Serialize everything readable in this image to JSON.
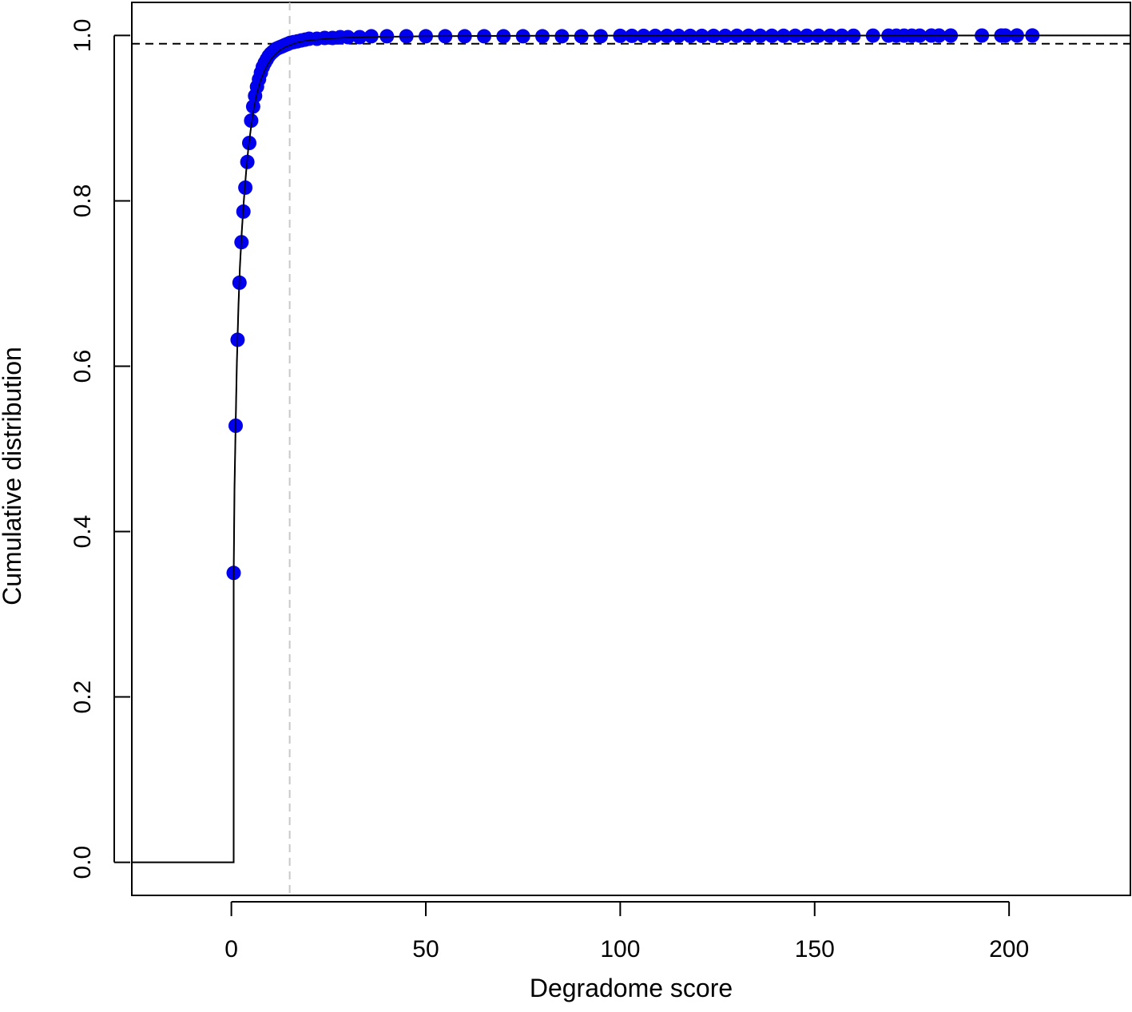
{
  "chart_data": {
    "type": "scatter",
    "title": "",
    "xlabel": "Degradome score",
    "ylabel": "Cumulative distribution",
    "xlim": [
      -25.6,
      231.2
    ],
    "ylim": [
      -0.04,
      1.04
    ],
    "x_ticks": [
      0,
      50,
      100,
      150,
      200
    ],
    "x_tick_labels": [
      "0",
      "50",
      "100",
      "150",
      "200"
    ],
    "y_ticks": [
      0.0,
      0.2,
      0.4,
      0.6,
      0.8,
      1.0
    ],
    "y_tick_labels": [
      "0.0",
      "0.2",
      "0.4",
      "0.6",
      "0.8",
      "1.0"
    ],
    "grid": false,
    "legend": "none",
    "point_color": "#0000ee",
    "series": [
      {
        "kind": "empirical_cdf_points",
        "x": [
          0.6,
          1.1,
          1.6,
          2.1,
          2.6,
          3.1,
          3.6,
          4.1,
          4.6,
          5.1,
          5.6,
          6.1,
          6.6,
          7.1,
          7.6,
          8.1,
          8.6,
          9.1,
          9.6,
          10.1,
          10.6,
          11.1,
          11.6,
          12.1,
          12.6,
          13.1,
          13.6,
          14.1,
          14.6,
          15.1,
          16,
          17,
          18,
          19,
          20,
          22,
          24,
          26,
          28,
          30,
          33,
          36,
          40,
          45,
          50,
          55,
          60,
          65,
          70,
          75,
          80,
          85,
          90,
          95,
          100,
          103,
          106,
          109,
          112,
          115,
          118,
          121,
          124,
          127,
          130,
          133,
          136,
          139,
          142,
          145,
          148,
          151,
          154,
          157,
          160,
          165,
          169,
          171,
          173,
          175,
          177,
          180,
          182,
          185,
          193,
          198,
          199,
          202,
          206
        ],
        "y": [
          0.35,
          0.528,
          0.632,
          0.701,
          0.75,
          0.787,
          0.816,
          0.847,
          0.87,
          0.897,
          0.914,
          0.927,
          0.938,
          0.947,
          0.955,
          0.962,
          0.967,
          0.971,
          0.975,
          0.978,
          0.98,
          0.982,
          0.984,
          0.985,
          0.986,
          0.987,
          0.988,
          0.989,
          0.99,
          0.991,
          0.992,
          0.993,
          0.994,
          0.995,
          0.996,
          0.996,
          0.997,
          0.997,
          0.998,
          0.998,
          0.998,
          0.999,
          0.999,
          0.999,
          0.999,
          0.999,
          0.999,
          0.999,
          0.999,
          0.999,
          0.999,
          0.999,
          0.999,
          0.999,
          0.9995,
          0.9995,
          0.9995,
          0.9995,
          0.9995,
          0.9995,
          0.9995,
          0.9995,
          0.9995,
          0.9995,
          0.9996,
          0.9996,
          0.9996,
          0.9996,
          0.9996,
          0.9996,
          0.9997,
          0.9997,
          0.9997,
          0.9997,
          0.9997,
          0.9998,
          0.9998,
          0.9998,
          0.9998,
          0.9998,
          0.9998,
          0.9999,
          0.9999,
          0.9999,
          0.9999,
          0.9999,
          0.9999,
          1.0,
          1.0
        ]
      },
      {
        "kind": "fitted_cdf_line",
        "x": [
          -25.6,
          0.6,
          0.6,
          0.8,
          1.1,
          1.4,
          1.8,
          2.2,
          2.7,
          3.2,
          3.8,
          4.4,
          5.1,
          5.8,
          6.6,
          7.5,
          8.5,
          9.5,
          10.5,
          11.5,
          12.5,
          13.5,
          14.5,
          15.5,
          17,
          19,
          22,
          26,
          30,
          40,
          50,
          60,
          80,
          100,
          150,
          200,
          231.2
        ],
        "y": [
          0,
          0,
          0.345,
          0.45,
          0.53,
          0.6,
          0.67,
          0.72,
          0.765,
          0.8,
          0.835,
          0.865,
          0.89,
          0.912,
          0.93,
          0.945,
          0.957,
          0.966,
          0.973,
          0.978,
          0.982,
          0.985,
          0.987,
          0.989,
          0.9915,
          0.9935,
          0.995,
          0.9965,
          0.9975,
          0.9985,
          0.999,
          0.9993,
          0.9996,
          0.9998,
          0.9999,
          1.0,
          1.0
        ]
      }
    ],
    "reference_lines": [
      {
        "orientation": "horizontal",
        "y": 0.99,
        "style": "dashed",
        "color": "#000000"
      },
      {
        "orientation": "vertical",
        "x": 15,
        "style": "dashed",
        "color": "#c8c8c8"
      }
    ]
  }
}
